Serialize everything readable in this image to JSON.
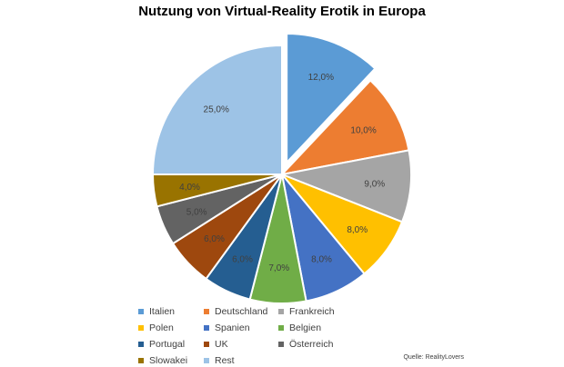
{
  "chart_data": {
    "type": "pie",
    "title": "Nutzung von Virtual-Reality Erotik in Europa",
    "source": "Quelle: RealityLovers",
    "legend_position": "bottom",
    "exploded_slice": "Italien",
    "slices": [
      {
        "name": "Italien",
        "value": 12.0,
        "label": "12,0%",
        "color": "#5b9bd5"
      },
      {
        "name": "Deutschland",
        "value": 10.0,
        "label": "10,0%",
        "color": "#ed7d31"
      },
      {
        "name": "Frankreich",
        "value": 9.0,
        "label": "9,0%",
        "color": "#a5a5a5"
      },
      {
        "name": "Polen",
        "value": 8.0,
        "label": "8,0%",
        "color": "#ffc000"
      },
      {
        "name": "Spanien",
        "value": 8.0,
        "label": "8,0%",
        "color": "#4472c4"
      },
      {
        "name": "Belgien",
        "value": 7.0,
        "label": "7,0%",
        "color": "#70ad47"
      },
      {
        "name": "Portugal",
        "value": 6.0,
        "label": "6,0%",
        "color": "#255e91"
      },
      {
        "name": "UK",
        "value": 6.0,
        "label": "6,0%",
        "color": "#9e480e"
      },
      {
        "name": "Österreich",
        "value": 5.0,
        "label": "5,0%",
        "color": "#636363"
      },
      {
        "name": "Slowakei",
        "value": 4.0,
        "label": "4,0%",
        "color": "#997300"
      },
      {
        "name": "Rest",
        "value": 25.0,
        "label": "25,0%",
        "color": "#9dc3e6"
      }
    ]
  }
}
